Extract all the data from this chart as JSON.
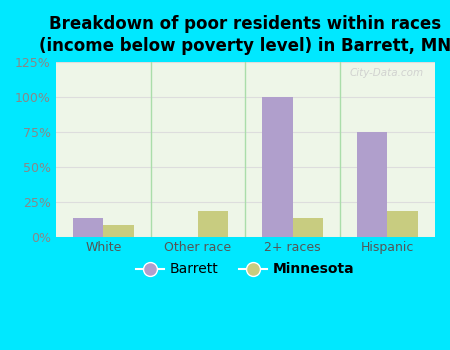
{
  "title": "Breakdown of poor residents within races\n(income below poverty level) in Barrett, MN",
  "categories": [
    "White",
    "Other race",
    "2+ races",
    "Hispanic"
  ],
  "barrett_values": [
    13,
    0,
    100,
    75
  ],
  "minnesota_values": [
    8,
    18,
    13,
    18
  ],
  "barrett_color": "#b09fcc",
  "minnesota_color": "#c8cc80",
  "background_outer": "#00e8ff",
  "background_inner_top": "#f0f8ec",
  "background_inner_bottom": "#ffffff",
  "ylim": [
    0,
    125
  ],
  "yticks": [
    0,
    25,
    50,
    75,
    100,
    125
  ],
  "ytick_labels": [
    "0%",
    "25%",
    "50%",
    "75%",
    "100%",
    "125%"
  ],
  "bar_width": 0.32,
  "legend_labels": [
    "Barrett",
    "Minnesota"
  ],
  "title_fontsize": 12,
  "tick_fontsize": 9,
  "legend_fontsize": 10,
  "ytick_color": "#888888",
  "xtick_color": "#555555",
  "separator_color": "#aaddaa",
  "grid_color": "#dddddd",
  "watermark_text": "City-Data.com",
  "watermark_color": "#cccccc"
}
